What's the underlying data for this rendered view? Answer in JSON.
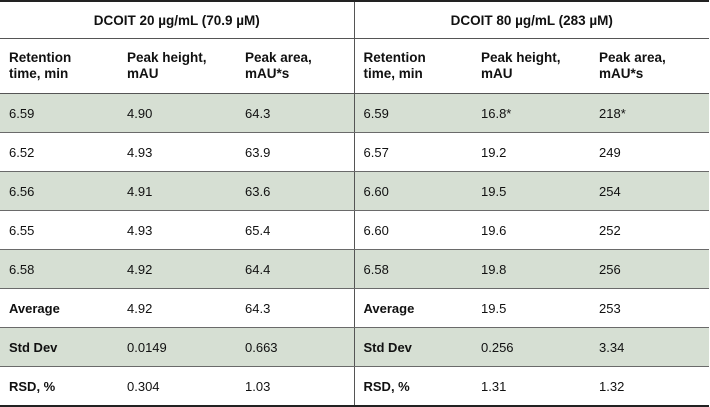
{
  "table": {
    "group_headers": [
      "DCOIT 20 µg/mL (70.9 µM)",
      "DCOIT 80 µg/mL (283 µM)"
    ],
    "column_headers": [
      [
        "Retention",
        "time, min"
      ],
      [
        "Peak height,",
        "mAU"
      ],
      [
        "Peak area,",
        "mAU*s"
      ],
      [
        "Retention",
        "time, min"
      ],
      [
        "Peak height,",
        "mAU"
      ],
      [
        "Peak area,",
        "mAU*s"
      ]
    ],
    "rows": [
      [
        "6.59",
        "4.90",
        "64.3",
        "6.59",
        "16.8*",
        "218*"
      ],
      [
        "6.52",
        "4.93",
        "63.9",
        "6.57",
        "19.2",
        "249"
      ],
      [
        "6.56",
        "4.91",
        "63.6",
        "6.60",
        "19.5",
        "254"
      ],
      [
        "6.55",
        "4.93",
        "65.4",
        "6.60",
        "19.6",
        "252"
      ],
      [
        "6.58",
        "4.92",
        "64.4",
        "6.58",
        "19.8",
        "256"
      ],
      [
        "Average",
        "4.92",
        "64.3",
        "Average",
        "19.5",
        "253"
      ],
      [
        "Std Dev",
        "0.0149",
        "0.663",
        "Std Dev",
        "0.256",
        "3.34"
      ],
      [
        "RSD, %",
        "0.304",
        "1.03",
        "RSD, %",
        "1.31",
        "1.32"
      ]
    ]
  },
  "colors": {
    "shaded_row": "#d6dfd3",
    "rule": "#222222"
  }
}
